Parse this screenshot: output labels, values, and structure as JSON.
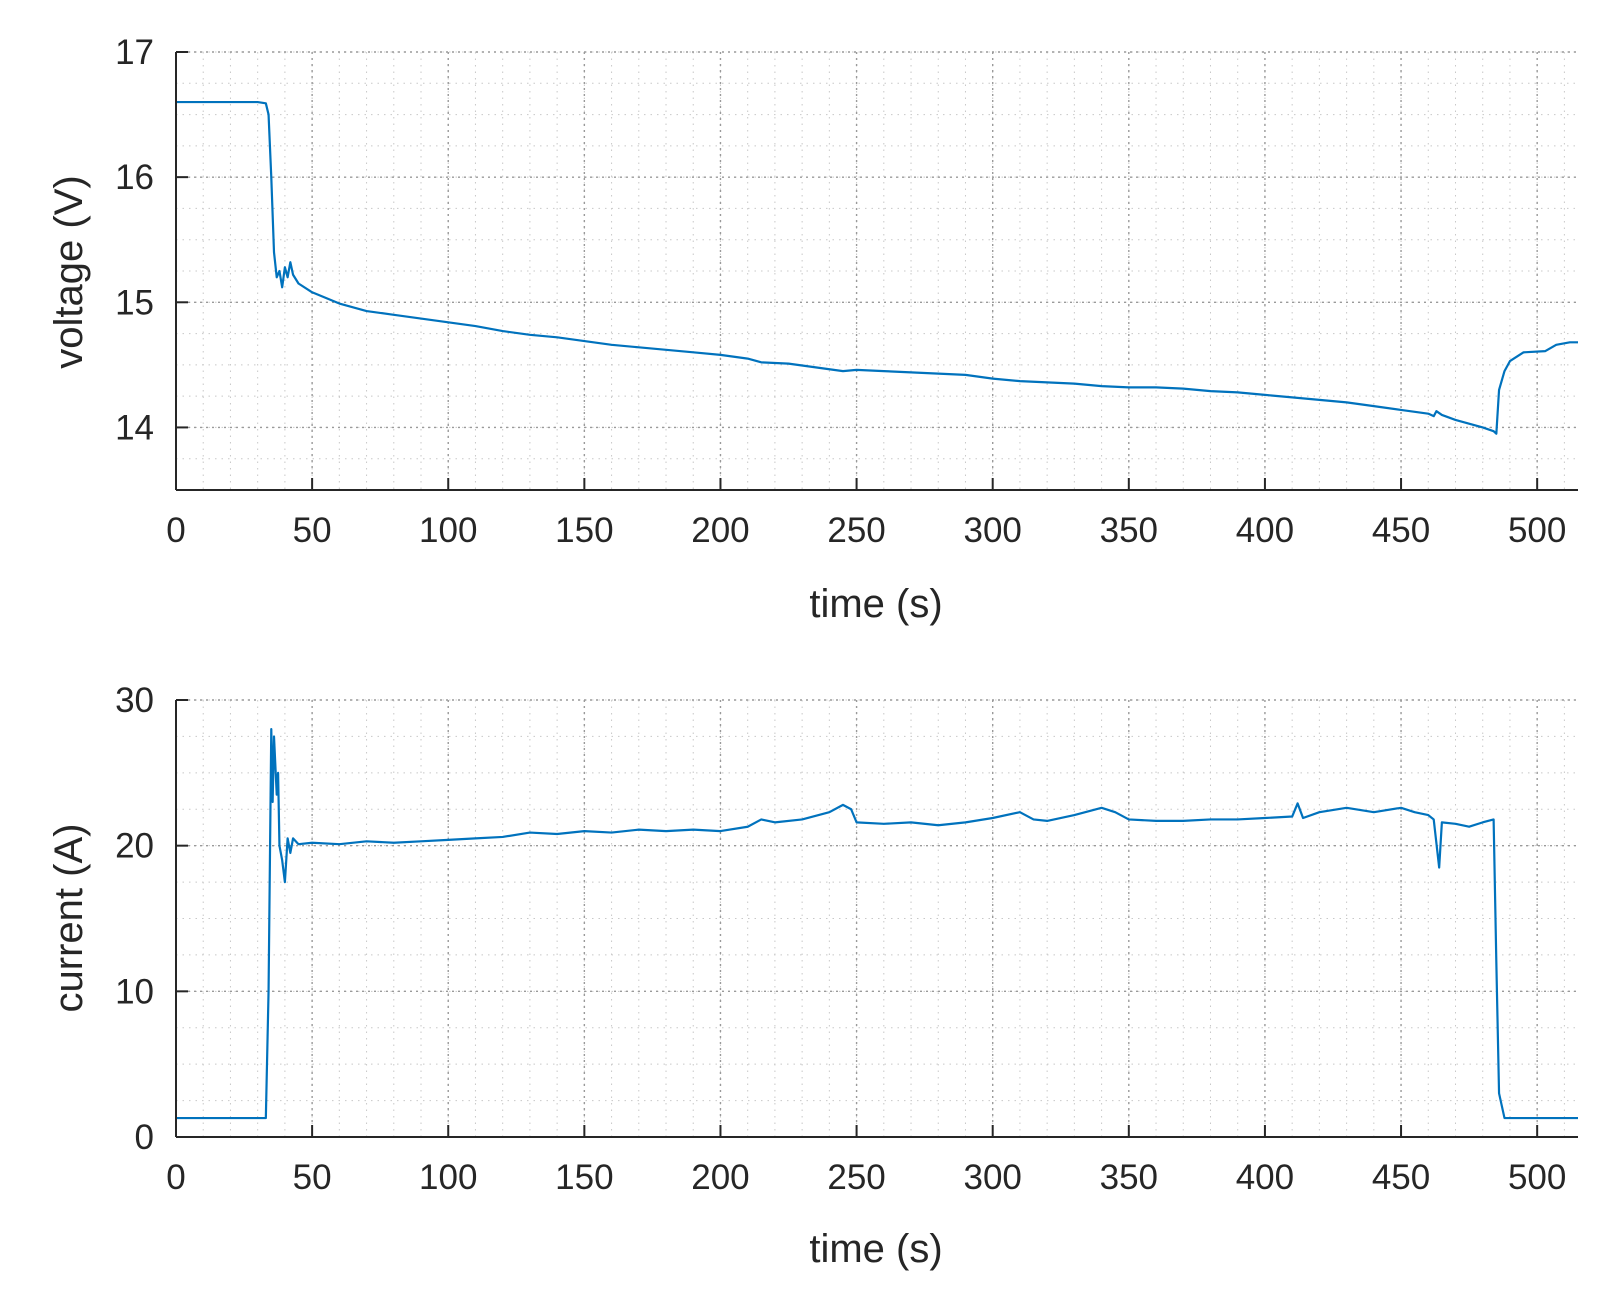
{
  "chart_data": [
    {
      "type": "line",
      "title": "",
      "xlabel": "time (s)",
      "ylabel": "voltage (V)",
      "xlim": [
        0,
        515
      ],
      "ylim": [
        13.5,
        17
      ],
      "grid": "major and minor, dotted",
      "xticks": [
        0,
        50,
        100,
        150,
        200,
        250,
        300,
        350,
        400,
        450,
        500
      ],
      "yticks": [
        14,
        15,
        16,
        17
      ],
      "series": [
        {
          "name": "voltage",
          "color": "#0072BD",
          "points": [
            [
              0,
              16.6
            ],
            [
              10,
              16.6
            ],
            [
              20,
              16.6
            ],
            [
              30,
              16.6
            ],
            [
              33,
              16.59
            ],
            [
              34,
              16.5
            ],
            [
              35,
              16.0
            ],
            [
              36,
              15.4
            ],
            [
              37,
              15.2
            ],
            [
              38,
              15.25
            ],
            [
              39,
              15.12
            ],
            [
              40,
              15.28
            ],
            [
              41,
              15.2
            ],
            [
              42,
              15.32
            ],
            [
              43,
              15.22
            ],
            [
              45,
              15.15
            ],
            [
              50,
              15.08
            ],
            [
              60,
              14.99
            ],
            [
              70,
              14.93
            ],
            [
              80,
              14.9
            ],
            [
              90,
              14.87
            ],
            [
              100,
              14.84
            ],
            [
              110,
              14.81
            ],
            [
              120,
              14.77
            ],
            [
              130,
              14.74
            ],
            [
              140,
              14.72
            ],
            [
              150,
              14.69
            ],
            [
              160,
              14.66
            ],
            [
              170,
              14.64
            ],
            [
              180,
              14.62
            ],
            [
              190,
              14.6
            ],
            [
              200,
              14.58
            ],
            [
              210,
              14.55
            ],
            [
              215,
              14.52
            ],
            [
              225,
              14.51
            ],
            [
              235,
              14.48
            ],
            [
              245,
              14.45
            ],
            [
              250,
              14.46
            ],
            [
              260,
              14.45
            ],
            [
              270,
              14.44
            ],
            [
              280,
              14.43
            ],
            [
              290,
              14.42
            ],
            [
              300,
              14.39
            ],
            [
              310,
              14.37
            ],
            [
              320,
              14.36
            ],
            [
              330,
              14.35
            ],
            [
              340,
              14.33
            ],
            [
              350,
              14.32
            ],
            [
              360,
              14.32
            ],
            [
              370,
              14.31
            ],
            [
              380,
              14.29
            ],
            [
              390,
              14.28
            ],
            [
              400,
              14.26
            ],
            [
              410,
              14.24
            ],
            [
              420,
              14.22
            ],
            [
              430,
              14.2
            ],
            [
              440,
              14.17
            ],
            [
              450,
              14.14
            ],
            [
              460,
              14.11
            ],
            [
              462,
              14.09
            ],
            [
              463,
              14.13
            ],
            [
              465,
              14.1
            ],
            [
              470,
              14.06
            ],
            [
              480,
              14.0
            ],
            [
              484,
              13.97
            ],
            [
              485,
              13.95
            ],
            [
              486,
              14.3
            ],
            [
              488,
              14.45
            ],
            [
              490,
              14.53
            ],
            [
              495,
              14.6
            ],
            [
              503,
              14.61
            ],
            [
              507,
              14.66
            ],
            [
              512,
              14.68
            ],
            [
              515,
              14.68
            ]
          ]
        }
      ]
    },
    {
      "type": "line",
      "title": "",
      "xlabel": "time (s)",
      "ylabel": "current (A)",
      "xlim": [
        0,
        515
      ],
      "ylim": [
        0,
        30
      ],
      "grid": "major and minor, dotted",
      "xticks": [
        0,
        50,
        100,
        150,
        200,
        250,
        300,
        350,
        400,
        450,
        500
      ],
      "yticks": [
        0,
        10,
        20,
        30
      ],
      "series": [
        {
          "name": "current",
          "color": "#0072BD",
          "points": [
            [
              0,
              1.3
            ],
            [
              10,
              1.3
            ],
            [
              20,
              1.3
            ],
            [
              30,
              1.3
            ],
            [
              33,
              1.3
            ],
            [
              34,
              10
            ],
            [
              35,
              28
            ],
            [
              35.5,
              23
            ],
            [
              36,
              27.5
            ],
            [
              37,
              23.5
            ],
            [
              37.5,
              25
            ],
            [
              38,
              20
            ],
            [
              39,
              19
            ],
            [
              40,
              17.5
            ],
            [
              41,
              20.5
            ],
            [
              42,
              19.5
            ],
            [
              43,
              20.5
            ],
            [
              45,
              20.1
            ],
            [
              50,
              20.2
            ],
            [
              60,
              20.1
            ],
            [
              70,
              20.3
            ],
            [
              80,
              20.2
            ],
            [
              90,
              20.3
            ],
            [
              100,
              20.4
            ],
            [
              110,
              20.5
            ],
            [
              120,
              20.6
            ],
            [
              130,
              20.9
            ],
            [
              140,
              20.8
            ],
            [
              150,
              21.0
            ],
            [
              160,
              20.9
            ],
            [
              170,
              21.1
            ],
            [
              180,
              21.0
            ],
            [
              190,
              21.1
            ],
            [
              200,
              21.0
            ],
            [
              210,
              21.3
            ],
            [
              215,
              21.8
            ],
            [
              220,
              21.6
            ],
            [
              230,
              21.8
            ],
            [
              240,
              22.3
            ],
            [
              245,
              22.8
            ],
            [
              248,
              22.5
            ],
            [
              250,
              21.6
            ],
            [
              260,
              21.5
            ],
            [
              270,
              21.6
            ],
            [
              280,
              21.4
            ],
            [
              290,
              21.6
            ],
            [
              300,
              21.9
            ],
            [
              310,
              22.3
            ],
            [
              315,
              21.8
            ],
            [
              320,
              21.7
            ],
            [
              330,
              22.1
            ],
            [
              340,
              22.6
            ],
            [
              345,
              22.3
            ],
            [
              350,
              21.8
            ],
            [
              360,
              21.7
            ],
            [
              370,
              21.7
            ],
            [
              380,
              21.8
            ],
            [
              390,
              21.8
            ],
            [
              400,
              21.9
            ],
            [
              410,
              22.0
            ],
            [
              412,
              22.9
            ],
            [
              414,
              21.9
            ],
            [
              420,
              22.3
            ],
            [
              430,
              22.6
            ],
            [
              440,
              22.3
            ],
            [
              450,
              22.6
            ],
            [
              455,
              22.3
            ],
            [
              460,
              22.1
            ],
            [
              462,
              21.8
            ],
            [
              464,
              18.5
            ],
            [
              465,
              21.6
            ],
            [
              470,
              21.5
            ],
            [
              475,
              21.3
            ],
            [
              480,
              21.6
            ],
            [
              484,
              21.8
            ],
            [
              485,
              12
            ],
            [
              486,
              3
            ],
            [
              488,
              1.3
            ],
            [
              500,
              1.3
            ],
            [
              515,
              1.3
            ]
          ]
        }
      ]
    }
  ]
}
